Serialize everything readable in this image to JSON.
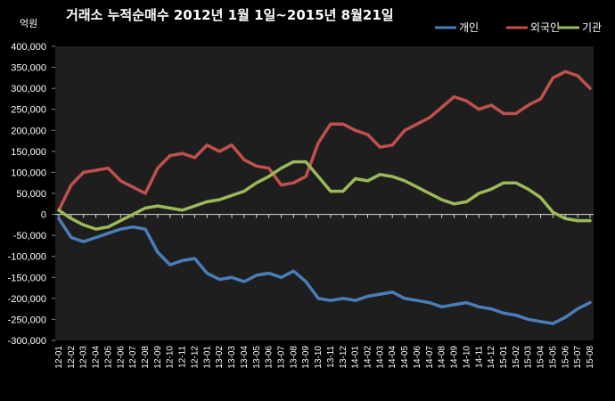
{
  "chart_data": {
    "type": "line",
    "title": "거래소 누적순매수 2012년 1월 1일~2015년 8월21일",
    "ylabel": "억원",
    "ylim": [
      -300000,
      400000
    ],
    "yticks": [
      "400,000",
      "350,000",
      "300,000",
      "250,000",
      "200,000",
      "150,000",
      "100,000",
      "50,000",
      "0",
      "-50,000",
      "-100,000",
      "-150,000",
      "-200,000",
      "-250,000",
      "-300,000"
    ],
    "categories": [
      "12-01",
      "12-02",
      "12-03",
      "12-04",
      "12-05",
      "12-06",
      "12-07",
      "12-08",
      "12-09",
      "12-10",
      "12-11",
      "12-12",
      "13-01",
      "13-02",
      "13-03",
      "13-04",
      "13-05",
      "13-06",
      "13-07",
      "13-08",
      "13-09",
      "13-10",
      "13-11",
      "13-12",
      "14-01",
      "14-02",
      "14-03",
      "14-04",
      "14-05",
      "14-06",
      "14-07",
      "14-08",
      "14-09",
      "14-10",
      "14-11",
      "14-12",
      "15-01",
      "15-02",
      "15-03",
      "15-04",
      "15-05",
      "15-06",
      "15-07",
      "15-08"
    ],
    "grid": false,
    "legend_position": "top-right",
    "series": [
      {
        "name": "개인",
        "color": "#4a7ebb",
        "values": [
          -10000,
          -55000,
          -65000,
          -55000,
          -45000,
          -35000,
          -30000,
          -35000,
          -90000,
          -120000,
          -110000,
          -105000,
          -140000,
          -155000,
          -150000,
          -160000,
          -145000,
          -140000,
          -150000,
          -135000,
          -160000,
          -200000,
          -205000,
          -200000,
          -205000,
          -195000,
          -190000,
          -185000,
          -200000,
          -205000,
          -210000,
          -220000,
          -215000,
          -210000,
          -220000,
          -225000,
          -235000,
          -240000,
          -250000,
          -255000,
          -260000,
          -245000,
          -225000,
          -210000
        ]
      },
      {
        "name": "외국인",
        "color": "#c0504d",
        "values": [
          10000,
          70000,
          100000,
          105000,
          110000,
          80000,
          65000,
          50000,
          110000,
          140000,
          145000,
          135000,
          165000,
          150000,
          165000,
          130000,
          115000,
          110000,
          70000,
          75000,
          90000,
          170000,
          215000,
          215000,
          200000,
          190000,
          160000,
          165000,
          200000,
          215000,
          230000,
          255000,
          280000,
          270000,
          250000,
          260000,
          240000,
          240000,
          260000,
          275000,
          325000,
          340000,
          330000,
          300000
        ]
      },
      {
        "name": "기관",
        "color": "#9bbb59",
        "values": [
          10000,
          -10000,
          -25000,
          -35000,
          -30000,
          -15000,
          0,
          15000,
          20000,
          15000,
          10000,
          20000,
          30000,
          35000,
          45000,
          55000,
          75000,
          90000,
          110000,
          125000,
          125000,
          90000,
          55000,
          55000,
          85000,
          80000,
          95000,
          90000,
          80000,
          65000,
          50000,
          35000,
          25000,
          30000,
          50000,
          60000,
          75000,
          75000,
          60000,
          40000,
          5000,
          -10000,
          -15000,
          -15000
        ]
      }
    ]
  }
}
